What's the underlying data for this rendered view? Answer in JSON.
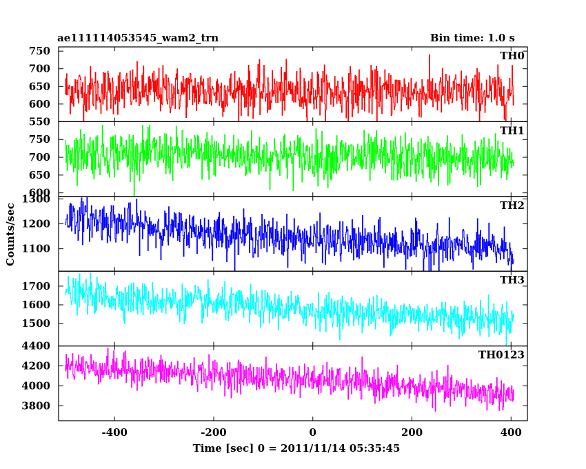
{
  "header": {
    "title": "ae111114053545_wam2_trn",
    "bin_time": "Bin time: 1.0 s"
  },
  "chart_data": {
    "type": "line",
    "title": "ae111114053545_wam2_trn",
    "subtitle": "Bin time: 1.0 s",
    "xlabel": "Time [sec] 0 = 2011/11/14 05:35:45",
    "ylabel": "Counts/sec",
    "xlim": [
      -513,
      433
    ],
    "xticks": [
      -400,
      -200,
      0,
      200,
      400
    ],
    "x_start": -500,
    "x_end": 405,
    "x_step": 1,
    "panels": [
      {
        "name": "TH0",
        "color": "#ff0000",
        "ylim": [
          550,
          762
        ],
        "yticks": [
          550,
          600,
          650,
          700,
          750
        ],
        "trend": [
          [
            -500,
            640
          ],
          [
            405,
            630
          ]
        ],
        "noise": 33,
        "max": 755
      },
      {
        "name": "TH1",
        "color": "#00ff00",
        "ylim": [
          590,
          800
        ],
        "yticks": [
          600,
          650,
          700,
          750
        ],
        "trend": [
          [
            -500,
            715
          ],
          [
            405,
            690
          ]
        ],
        "noise": 33,
        "max": 790
      },
      {
        "name": "TH2",
        "color": "#0000ff",
        "ylim": [
          1010,
          1310
        ],
        "yticks": [
          1100,
          1200,
          1300
        ],
        "trend": [
          [
            -500,
            1230
          ],
          [
            -300,
            1180
          ],
          [
            0,
            1135
          ],
          [
            405,
            1095
          ]
        ],
        "noise": 40,
        "max": 1320
      },
      {
        "name": "TH3",
        "color": "#00ffff",
        "ylim": [
          1380,
          1780
        ],
        "yticks": [
          1500,
          1600,
          1700
        ],
        "trend": [
          [
            -500,
            1660
          ],
          [
            -300,
            1620
          ],
          [
            0,
            1570
          ],
          [
            405,
            1520
          ]
        ],
        "noise": 45,
        "max": 1770
      },
      {
        "name": "TH0123",
        "color": "#ff00ff",
        "ylim": [
          3650,
          4400
        ],
        "yticks": [
          3800,
          4000,
          4200,
          4400
        ],
        "trend": [
          [
            -500,
            4200
          ],
          [
            -300,
            4140
          ],
          [
            0,
            4060
          ],
          [
            405,
            3910
          ]
        ],
        "noise": 75,
        "max": 4420
      }
    ],
    "grid": false
  }
}
